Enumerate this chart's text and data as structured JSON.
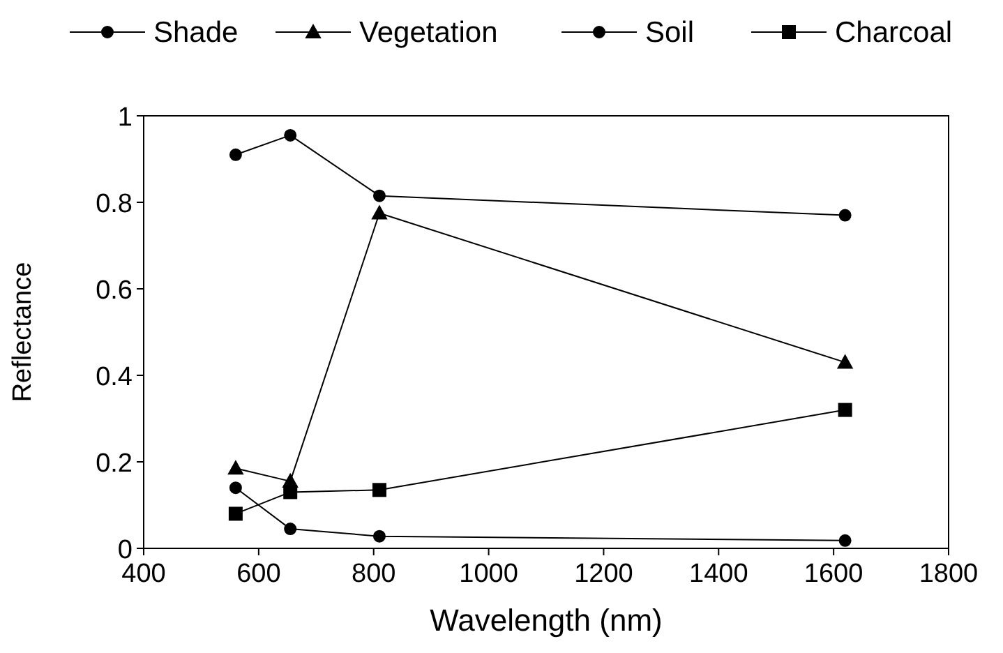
{
  "chart_data": {
    "type": "line",
    "xlabel": "Wavelength (nm)",
    "ylabel": "Reflectance",
    "xlim": [
      400,
      1800
    ],
    "xticks": [
      400,
      600,
      800,
      1000,
      1200,
      1400,
      1600,
      1800
    ],
    "ylim": [
      0,
      1
    ],
    "yticks": [
      0,
      0.2,
      0.4,
      0.6,
      0.8,
      1
    ],
    "x": [
      560,
      655,
      810,
      1620
    ],
    "legend": "top",
    "grid": false,
    "series": [
      {
        "name": "Shade",
        "color": "#000000",
        "marker": "circle",
        "values": [
          0.14,
          0.045,
          0.028,
          0.018
        ]
      },
      {
        "name": "Vegetation",
        "color": "#000000",
        "marker": "triangle",
        "values": [
          0.185,
          0.155,
          0.775,
          0.43
        ]
      },
      {
        "name": "Soil",
        "color": "#000000",
        "marker": "circle",
        "values": [
          0.91,
          0.955,
          0.815,
          0.77
        ]
      },
      {
        "name": "Charcoal",
        "color": "#000000",
        "marker": "square",
        "values": [
          0.08,
          0.13,
          0.135,
          0.32
        ]
      }
    ]
  }
}
